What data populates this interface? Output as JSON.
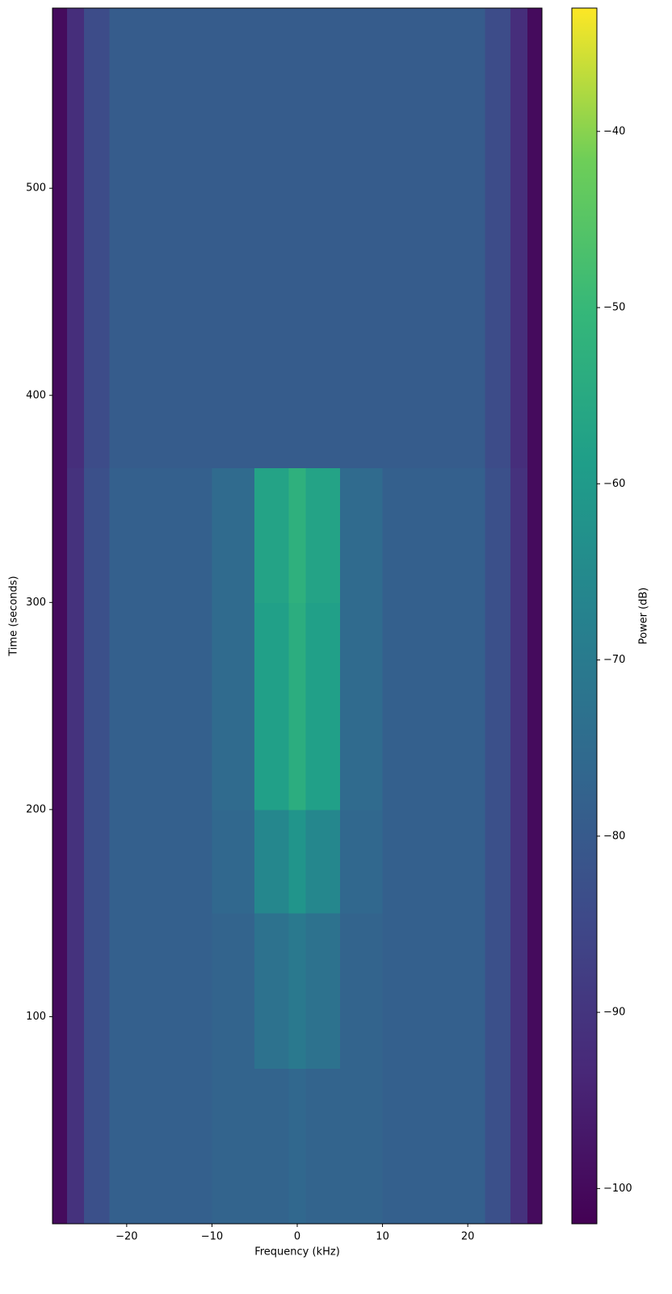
{
  "chart_data": {
    "type": "heatmap",
    "xlabel": "Frequency (kHz)",
    "ylabel": "Time (seconds)",
    "colorbar_label": "Power (dB)",
    "colormap": "viridis",
    "xlim": [
      -28.7,
      28.7
    ],
    "ylim": [
      0,
      587
    ],
    "xticks": [
      {
        "value": -20,
        "label": "−20"
      },
      {
        "value": -10,
        "label": "−10"
      },
      0,
      10,
      20
    ],
    "yticks": [
      100,
      200,
      300,
      400,
      500
    ],
    "clim": [
      -102,
      -33
    ],
    "cticks": [
      {
        "value": -40,
        "label": "−40"
      },
      {
        "value": -50,
        "label": "−50"
      },
      {
        "value": -60,
        "label": "−60"
      },
      {
        "value": -70,
        "label": "−70"
      },
      {
        "value": -80,
        "label": "−80"
      },
      {
        "value": -90,
        "label": "−90"
      },
      {
        "value": -100,
        "label": "−100"
      }
    ],
    "x_edges": [
      -28.7,
      -27,
      -25,
      -22,
      -10,
      -5,
      -1,
      1,
      5,
      10,
      22,
      25,
      27,
      28.7
    ],
    "y_edges": [
      0,
      75,
      150,
      200,
      300,
      365,
      587
    ],
    "z": [
      [
        -100,
        -92,
        -85,
        -81,
        -80,
        -80,
        -79,
        -80,
        -80,
        -81,
        -85,
        -92,
        -100
      ],
      [
        -100,
        -92,
        -85,
        -81,
        -80,
        -76,
        -74,
        -76,
        -80,
        -81,
        -85,
        -92,
        -100
      ],
      [
        -100,
        -92,
        -85,
        -81,
        -79,
        -70,
        -66,
        -70,
        -79,
        -81,
        -85,
        -92,
        -100
      ],
      [
        -100,
        -92,
        -85,
        -81,
        -78,
        -63,
        -59,
        -63,
        -78,
        -81,
        -85,
        -92,
        -100
      ],
      [
        -100,
        -92,
        -85,
        -81,
        -78,
        -62,
        -58,
        -62,
        -78,
        -81,
        -85,
        -92,
        -100
      ],
      [
        -100,
        -93,
        -86,
        -82,
        -82,
        -82,
        -82,
        -82,
        -82,
        -82,
        -86,
        -93,
        -100
      ]
    ]
  }
}
